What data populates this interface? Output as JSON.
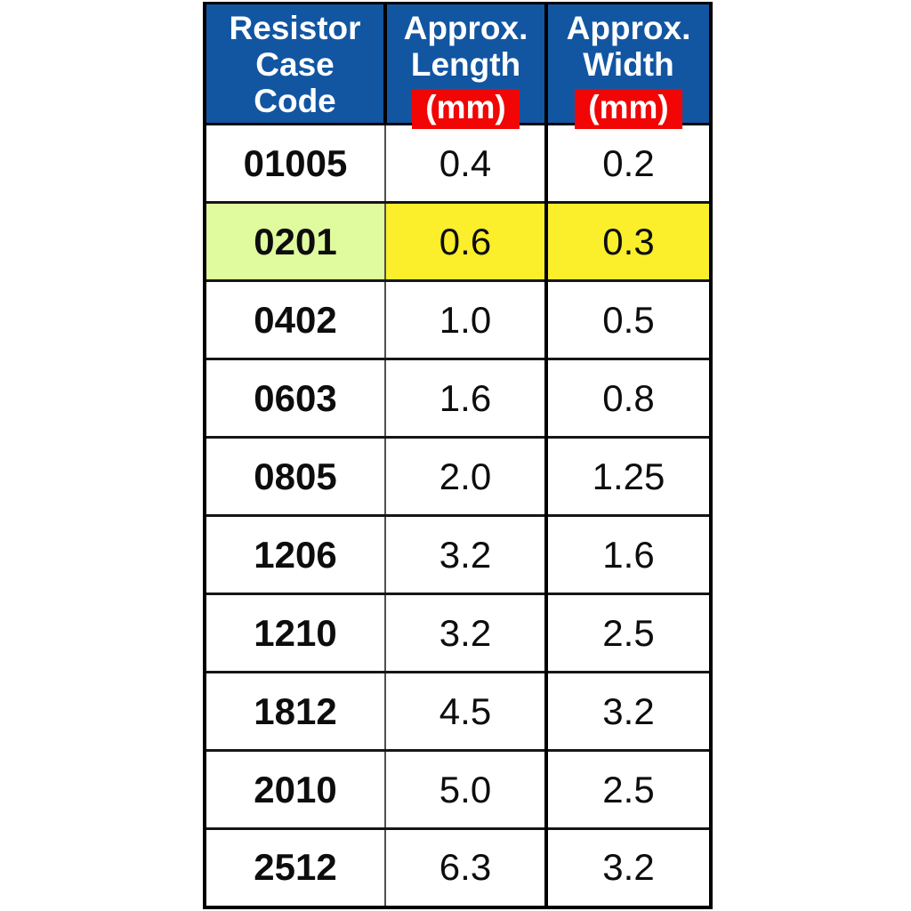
{
  "chart_data": {
    "type": "table",
    "columns": [
      "Resistor Case Code",
      "Approx. Length (mm)",
      "Approx. Width (mm)"
    ],
    "rows": [
      [
        "01005",
        "0.4",
        "0.2"
      ],
      [
        "0201",
        "0.6",
        "0.3"
      ],
      [
        "0402",
        "1.0",
        "0.5"
      ],
      [
        "0603",
        "1.6",
        "0.8"
      ],
      [
        "0805",
        "2.0",
        "1.25"
      ],
      [
        "1206",
        "3.2",
        "1.6"
      ],
      [
        "1210",
        "3.2",
        "2.5"
      ],
      [
        "1812",
        "4.5",
        "3.2"
      ],
      [
        "2010",
        "5.0",
        "2.5"
      ],
      [
        "2512",
        "6.3",
        "3.2"
      ]
    ],
    "highlighted_row_index": 1,
    "highlighted_row_code": "0201"
  },
  "header": {
    "case_code": {
      "lines": [
        "Resistor",
        "Case",
        "Code"
      ]
    },
    "length": {
      "lines": [
        "Approx.",
        "Length"
      ],
      "unit": "(mm)"
    },
    "width": {
      "lines": [
        "Approx.",
        "Width"
      ],
      "unit": "(mm)"
    }
  },
  "colors": {
    "header_bg": "#1256A2",
    "header_text": "#ffffff",
    "unit_badge_bg": "#F20505",
    "unit_badge_text": "#ffffff",
    "highlight_code_bg": "#E0FA9E",
    "highlight_value_bg": "#FBEE2B",
    "border": "#000000",
    "body_text": "#0d0d0d"
  }
}
